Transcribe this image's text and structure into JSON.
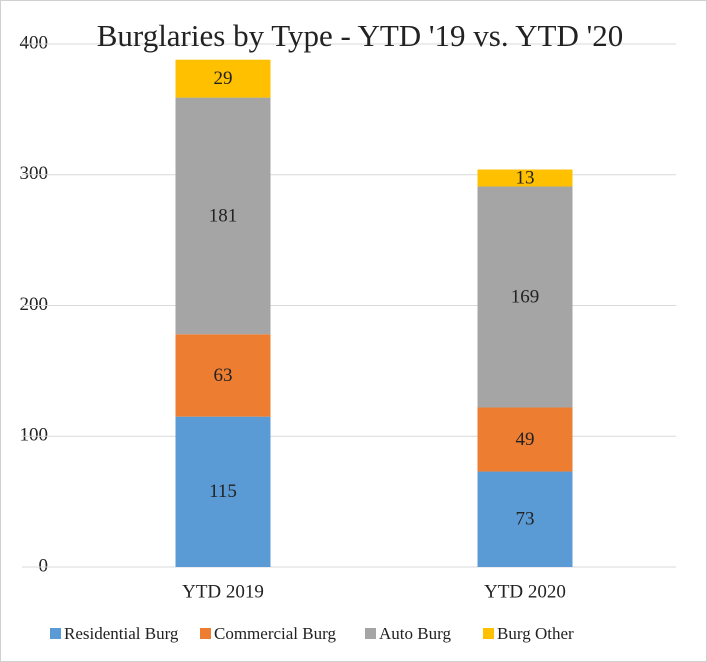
{
  "chart_data": {
    "type": "stacked_bar",
    "title": "Burglaries  by Type - YTD '19 vs. YTD '20",
    "categories": [
      "YTD 2019",
      "YTD 2020"
    ],
    "series": [
      {
        "name": "Residential Burg",
        "color": "#5b9bd5",
        "values": [
          115,
          73
        ]
      },
      {
        "name": "Commercial Burg",
        "color": "#ed7d31",
        "values": [
          63,
          49
        ]
      },
      {
        "name": "Auto Burg",
        "color": "#a5a5a5",
        "values": [
          181,
          169
        ]
      },
      {
        "name": "Burg Other",
        "color": "#ffc000",
        "values": [
          29,
          13
        ]
      }
    ],
    "ylim": [
      0,
      400
    ],
    "yticks": [
      0,
      100,
      200,
      300,
      400
    ],
    "grid": true,
    "legend": "bottom"
  }
}
